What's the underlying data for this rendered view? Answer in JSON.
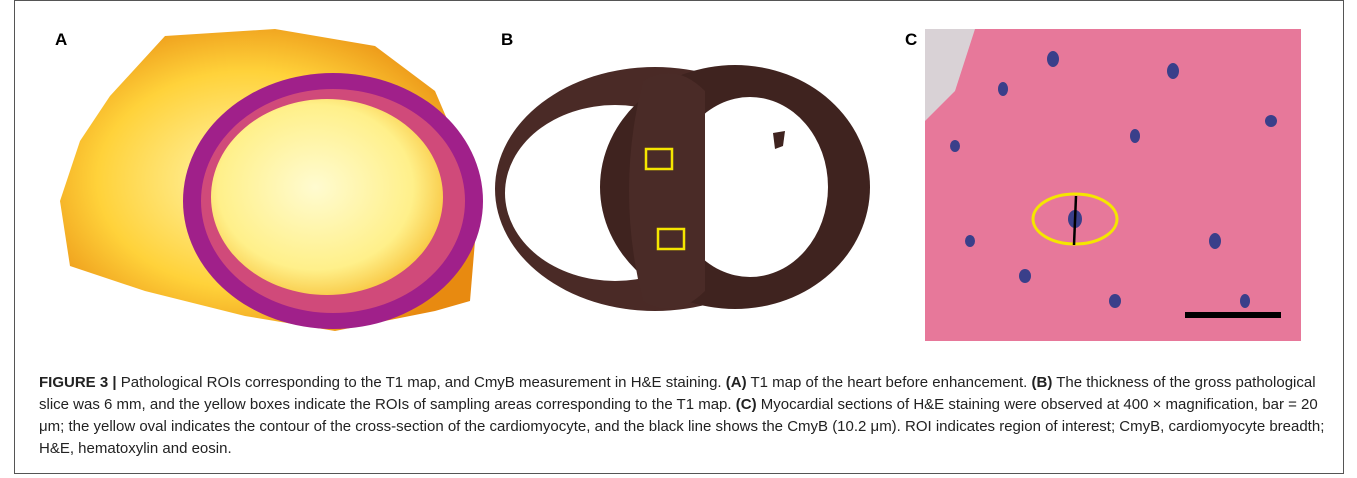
{
  "figure": {
    "panel_labels": [
      "A",
      "B",
      "C"
    ],
    "caption": [
      {
        "text": "FIGURE 3 |",
        "bold": true
      },
      {
        "text": "Pathological ROIs corresponding to the T1 map, and CmyB measurement in H&E staining.",
        "bold": false
      },
      {
        "text": "(A)",
        "bold": true
      },
      {
        "text": "T1 map of the heart before enhancement.",
        "bold": false
      },
      {
        "text": "(B)",
        "bold": true
      },
      {
        "text": "The thickness of the gross pathological slice was 6 mm, and the yellow boxes indicate the ROIs of sampling areas corresponding to the T1 map.",
        "bold": false
      },
      {
        "text": "(C)",
        "bold": true
      },
      {
        "text": "Myocardial sections of H&E staining were observed at 400 × magnification, bar = 20 μm; the yellow oval indicates the contour of the cross-section of the cardiomyocyte, and the black line shows the CmyB (10.2 μm). ROI indicates region of interest; CmyB, cardiomyocyte breadth; H&E, hematoxylin and eosin.",
        "bold": false
      }
    ]
  }
}
